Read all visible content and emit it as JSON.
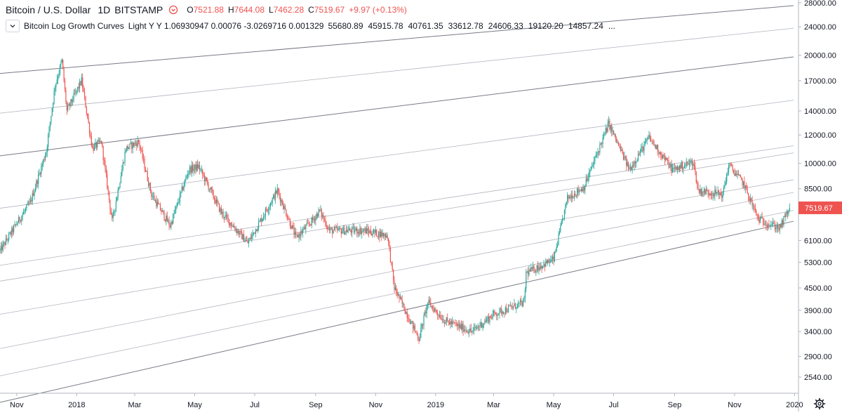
{
  "header": {
    "symbol": "Bitcoin / U.S. Dollar",
    "interval": "1D",
    "exchange": "BITSTAMP",
    "ohlc": {
      "open_label": "O",
      "open": "7521.88",
      "high_label": "H",
      "high": "7644.08",
      "low_label": "L",
      "low": "7462.28",
      "close_label": "C",
      "close": "7519.67",
      "change": "+9.97 (+0.13%)"
    }
  },
  "indicator": {
    "name": "Bitcoin Log Growth Curves",
    "params": "Light Y Y 1.06930947 0.00076 -3.0269716 0.001329",
    "values": [
      "55680.89",
      "45915.78",
      "40761.35",
      "33612.78",
      "24606.33",
      "19120.20",
      "14857.24",
      "..."
    ]
  },
  "last_price_label": "7519.67",
  "colors": {
    "up": "#26a69a",
    "down": "#ef5350",
    "curve": "#9598a1",
    "price_tag": "#ef5350",
    "axis": "#b2b5be"
  },
  "icons": {
    "collapse": "chevron-down-icon",
    "settings": "gear-icon",
    "indicator_toggle": "chevron-icon"
  },
  "chart_data": {
    "type": "candlestick",
    "y_scale": "log",
    "ylim": [
      2300,
      29000
    ],
    "y_ticks": [
      "28000.00",
      "24000.00",
      "20000.00",
      "17000.00",
      "14000.00",
      "12000.00",
      "10000.00",
      "8500.00",
      "7519.67",
      "6100.00",
      "5300.00",
      "4500.00",
      "3900.00",
      "3400.00",
      "2900.00",
      "2540.00"
    ],
    "x_ticks": [
      "Nov",
      "2018",
      "Mar",
      "May",
      "Jul",
      "Sep",
      "Nov",
      "2019",
      "Mar",
      "May",
      "Jul",
      "Sep",
      "Nov",
      "2020"
    ],
    "x_range": [
      "2017-10-15",
      "2020-01-05"
    ],
    "price_path": [
      [
        "2017-10-15",
        5700
      ],
      [
        "2017-11-01",
        6800
      ],
      [
        "2017-11-15",
        7800
      ],
      [
        "2017-12-01",
        10800
      ],
      [
        "2017-12-10",
        16500
      ],
      [
        "2017-12-17",
        19300
      ],
      [
        "2017-12-22",
        14000
      ],
      [
        "2018-01-06",
        17000
      ],
      [
        "2018-01-17",
        11000
      ],
      [
        "2018-01-26",
        11500
      ],
      [
        "2018-02-06",
        6900
      ],
      [
        "2018-02-20",
        11000
      ],
      [
        "2018-03-05",
        11500
      ],
      [
        "2018-03-18",
        8200
      ],
      [
        "2018-04-06",
        6700
      ],
      [
        "2018-04-25",
        9600
      ],
      [
        "2018-05-05",
        9800
      ],
      [
        "2018-05-28",
        7300
      ],
      [
        "2018-06-24",
        6000
      ],
      [
        "2018-07-24",
        8400
      ],
      [
        "2018-08-12",
        6200
      ],
      [
        "2018-08-30",
        7000
      ],
      [
        "2018-09-05",
        7400
      ],
      [
        "2018-09-15",
        6500
      ],
      [
        "2018-10-20",
        6500
      ],
      [
        "2018-11-13",
        6300
      ],
      [
        "2018-11-20",
        4500
      ],
      [
        "2018-12-15",
        3250
      ],
      [
        "2018-12-24",
        4100
      ],
      [
        "2019-01-10",
        3650
      ],
      [
        "2019-02-07",
        3400
      ],
      [
        "2019-03-01",
        3800
      ],
      [
        "2019-04-01",
        4100
      ],
      [
        "2019-04-03",
        4950
      ],
      [
        "2019-05-01",
        5400
      ],
      [
        "2019-05-15",
        8000
      ],
      [
        "2019-06-01",
        8600
      ],
      [
        "2019-06-26",
        12900
      ],
      [
        "2019-07-17",
        9600
      ],
      [
        "2019-08-06",
        11800
      ],
      [
        "2019-08-30",
        9600
      ],
      [
        "2019-09-20",
        10100
      ],
      [
        "2019-09-25",
        8400
      ],
      [
        "2019-10-20",
        8200
      ],
      [
        "2019-10-26",
        9900
      ],
      [
        "2019-11-10",
        8800
      ],
      [
        "2019-11-25",
        7000
      ],
      [
        "2019-12-17",
        6600
      ],
      [
        "2019-12-27",
        7519.67
      ]
    ],
    "growth_curves": [
      {
        "start": 17800,
        "end": 27500
      },
      {
        "start": 13800,
        "end": 23800
      },
      {
        "start": 10500,
        "end": 19800
      },
      {
        "start": 7500,
        "end": 15000
      },
      {
        "start": 5200,
        "end": 11200
      },
      {
        "start": 4700,
        "end": 10700
      },
      {
        "start": 3800,
        "end": 9000
      },
      {
        "start": 3050,
        "end": 8300
      },
      {
        "start": 2560,
        "end": 7400
      },
      {
        "start": 2160,
        "end": 6900
      }
    ],
    "curves_end_date": "2019-12-31"
  }
}
